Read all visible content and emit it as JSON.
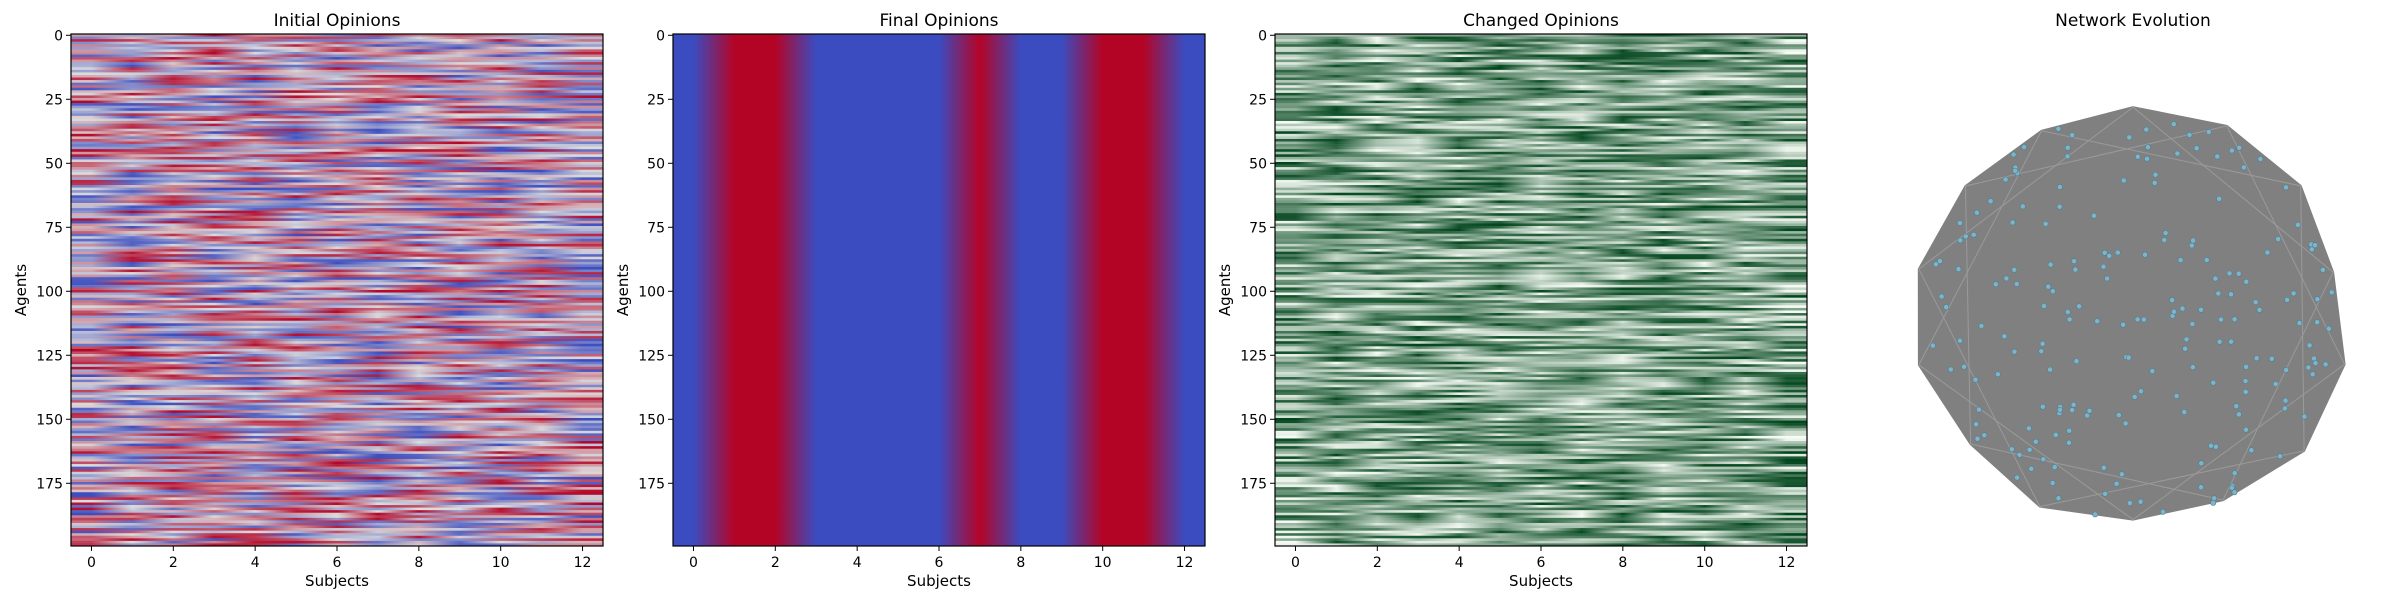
{
  "chart_data": [
    {
      "type": "heatmap",
      "title": "Initial Opinions",
      "xlabel": "Subjects",
      "ylabel": "Agents",
      "xticks": [
        0,
        2,
        4,
        6,
        8,
        10,
        12
      ],
      "yticks": [
        0,
        25,
        50,
        75,
        100,
        125,
        150,
        175
      ],
      "xlim": [
        -0.5,
        12.5
      ],
      "ylim": [
        199.5,
        -0.5
      ],
      "n_agents": 200,
      "n_subjects": 13,
      "colormap": "coolwarm",
      "value_range": [
        -1,
        1
      ],
      "pattern": "random values per agent and subject, no structure"
    },
    {
      "type": "heatmap",
      "title": "Final Opinions",
      "xlabel": "Subjects",
      "ylabel": "Agents",
      "xticks": [
        0,
        2,
        4,
        6,
        8,
        10,
        12
      ],
      "yticks": [
        0,
        25,
        50,
        75,
        100,
        125,
        150,
        175
      ],
      "xlim": [
        -0.5,
        12.5
      ],
      "ylim": [
        199.5,
        -0.5
      ],
      "n_agents": 200,
      "n_subjects": 13,
      "colormap": "coolwarm",
      "value_range": [
        -1,
        1
      ],
      "subject_values": [
        -1,
        1,
        1,
        -1,
        -1,
        -1,
        -1,
        1,
        -1,
        -1,
        1,
        1,
        -1
      ]
    },
    {
      "type": "heatmap",
      "title": "Changed Opinions",
      "xlabel": "Subjects",
      "ylabel": "Agents",
      "xticks": [
        0,
        2,
        4,
        6,
        8,
        10,
        12
      ],
      "yticks": [
        0,
        25,
        50,
        75,
        100,
        125,
        150,
        175
      ],
      "xlim": [
        -0.5,
        12.5
      ],
      "ylim": [
        199.5,
        -0.5
      ],
      "n_agents": 200,
      "n_subjects": 13,
      "colormap": "Greens",
      "value_range": [
        0,
        1
      ],
      "pattern": "random values per agent and subject"
    },
    {
      "type": "network",
      "title": "Network Evolution",
      "n_nodes": 200,
      "node_color": "#7fb3c8",
      "edge_color": "#808080",
      "layout": "dense nearly complete graph, roughly circular hull"
    }
  ],
  "colors": {
    "coolwarm_low": "#3b4cc0",
    "coolwarm_mid": "#dddddd",
    "coolwarm_high": "#b40426",
    "greens_low": "#f7fcf5",
    "greens_high": "#00441b",
    "network_fill": "#808080"
  }
}
